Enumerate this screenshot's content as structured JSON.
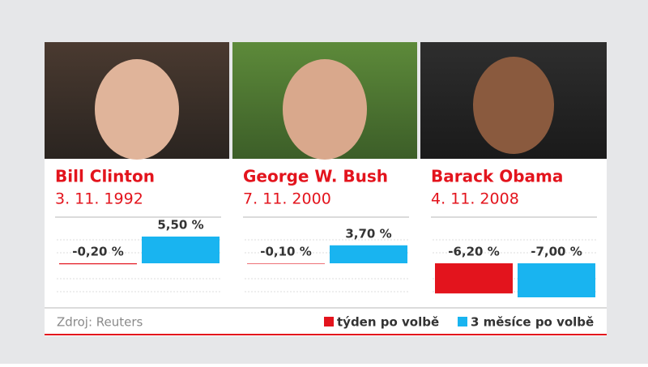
{
  "chart_data": [
    {
      "type": "bar",
      "title": "Bill Clinton",
      "subtitle": "3. 11. 1992",
      "categories": [
        null
      ],
      "series": [
        {
          "name": "týden po volbě",
          "color": "#e3141d",
          "values": [
            -0.2
          ],
          "value_labels": [
            "-0,20 %"
          ]
        },
        {
          "name": "3 měsíce po volbě",
          "color": "#19b4f0",
          "values": [
            5.5
          ],
          "value_labels": [
            "5,50 %"
          ]
        }
      ],
      "ylim": [
        -8,
        7
      ]
    },
    {
      "type": "bar",
      "title": "George W. Bush",
      "subtitle": "7. 11. 2000",
      "categories": [
        null
      ],
      "series": [
        {
          "name": "týden po volbě",
          "color": "#e3141d",
          "values": [
            -0.1
          ],
          "value_labels": [
            "-0,10 %"
          ]
        },
        {
          "name": "3 měsíce po volbě",
          "color": "#19b4f0",
          "values": [
            3.7
          ],
          "value_labels": [
            "3,70 %"
          ]
        }
      ],
      "ylim": [
        -8,
        7
      ]
    },
    {
      "type": "bar",
      "title": "Barack Obama",
      "subtitle": "4. 11. 2008",
      "categories": [
        null
      ],
      "series": [
        {
          "name": "týden po volbě",
          "color": "#e3141d",
          "values": [
            -6.2
          ],
          "value_labels": [
            "-6,20 %"
          ]
        },
        {
          "name": "3 měsíce po volbě",
          "color": "#19b4f0",
          "values": [
            -7.0
          ],
          "value_labels": [
            "-7,00 %"
          ]
        }
      ],
      "ylim": [
        -8,
        7
      ]
    }
  ],
  "source": "Zdroj: Reuters"
}
